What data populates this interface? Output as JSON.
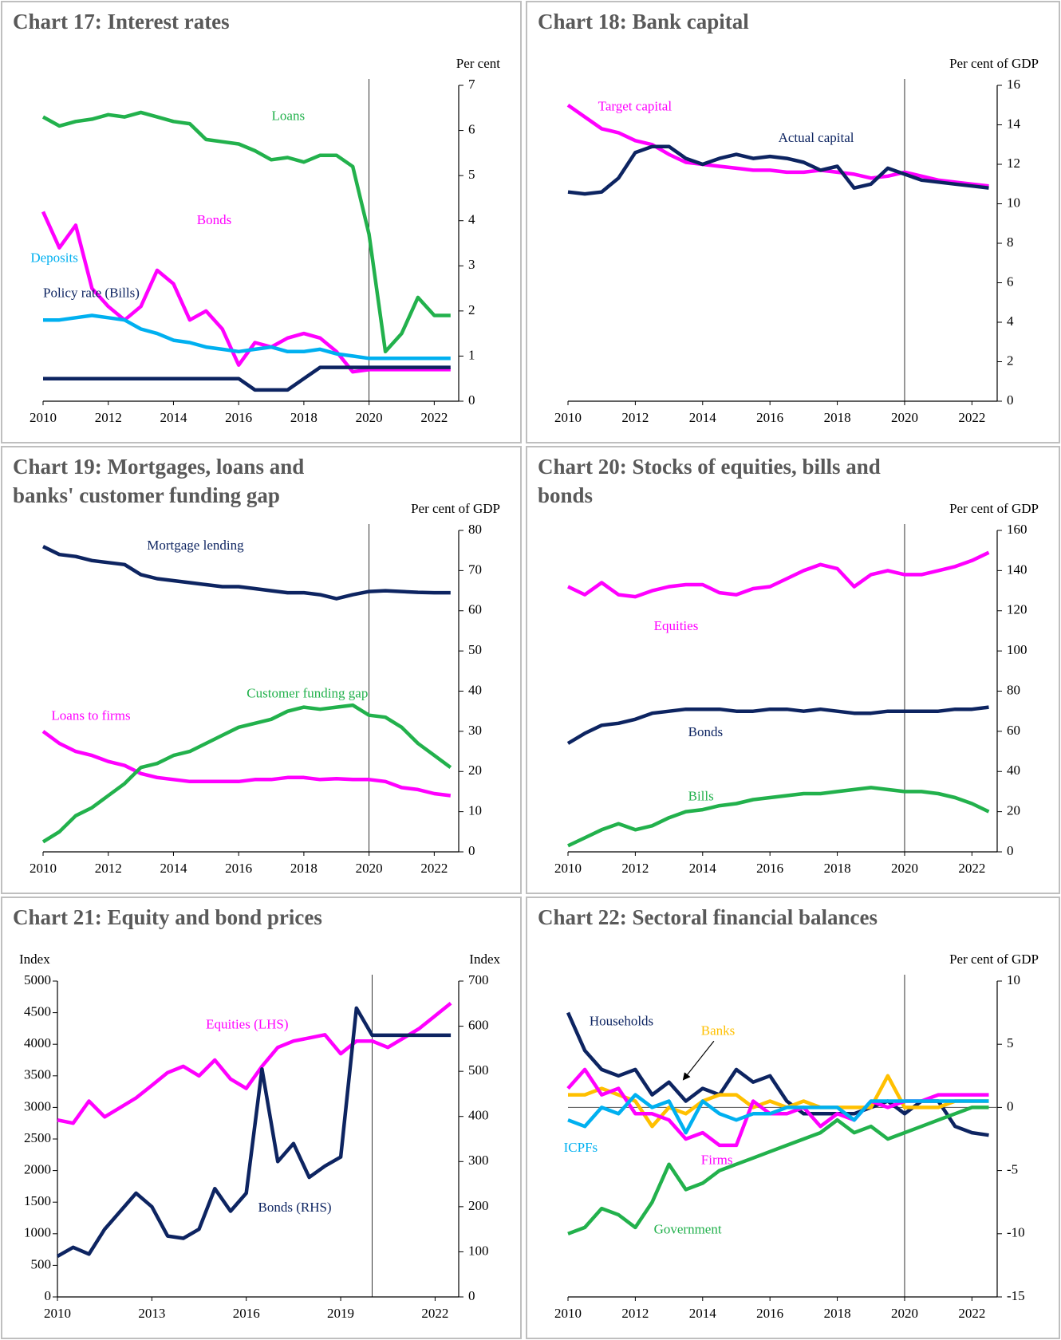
{
  "chart_data": [
    {
      "type": "line",
      "title": [
        "Chart 17:  Interest rates"
      ],
      "y_unit": "Per cent",
      "y_axis_side": "right",
      "vline": 2020,
      "x": [
        2010,
        2010.5,
        2011,
        2011.5,
        2012,
        2012.5,
        2013,
        2013.5,
        2014,
        2014.5,
        2015,
        2015.5,
        2016,
        2016.5,
        2017,
        2017.5,
        2018,
        2018.5,
        2019,
        2019.5,
        2020,
        2020.5,
        2021,
        2021.5,
        2022,
        2022.5
      ],
      "xlim": [
        2010,
        2022.75
      ],
      "xticks": [
        2010,
        2012,
        2014,
        2016,
        2018,
        2020,
        2022
      ],
      "ylim": [
        0,
        7
      ],
      "yticks": [
        0,
        1,
        2,
        3,
        4,
        5,
        6,
        7
      ],
      "series": [
        {
          "name": "Loans",
          "color": "#22b14c",
          "values": [
            6.3,
            6.1,
            6.2,
            6.25,
            6.35,
            6.3,
            6.4,
            6.3,
            6.2,
            6.15,
            5.8,
            5.75,
            5.7,
            5.55,
            5.35,
            5.4,
            5.3,
            5.45,
            5.45,
            5.2,
            3.7,
            1.1,
            1.5,
            2.3,
            1.9,
            1.9
          ]
        },
        {
          "name": "Bonds",
          "color": "#ff00ff",
          "values": [
            4.2,
            3.4,
            3.9,
            2.5,
            2.1,
            1.8,
            2.1,
            2.9,
            2.6,
            1.8,
            2.0,
            1.6,
            0.8,
            1.3,
            1.2,
            1.4,
            1.5,
            1.4,
            1.1,
            0.65,
            0.7,
            0.7,
            0.7,
            0.7,
            0.7,
            0.7
          ]
        },
        {
          "name": "Deposits",
          "color": "#00b0f0",
          "values": [
            1.8,
            1.8,
            1.85,
            1.9,
            1.85,
            1.8,
            1.6,
            1.5,
            1.35,
            1.3,
            1.2,
            1.15,
            1.1,
            1.15,
            1.2,
            1.1,
            1.1,
            1.15,
            1.05,
            1.0,
            0.95,
            0.95,
            0.95,
            0.95,
            0.95,
            0.95
          ]
        },
        {
          "name": "Policy rate (Bills)",
          "color": "#0d2461",
          "values": [
            0.5,
            0.5,
            0.5,
            0.5,
            0.5,
            0.5,
            0.5,
            0.5,
            0.5,
            0.5,
            0.5,
            0.5,
            0.5,
            0.25,
            0.25,
            0.25,
            0.5,
            0.75,
            0.75,
            0.75,
            0.75,
            0.75,
            0.75,
            0.75,
            0.75,
            0.75
          ]
        }
      ]
    },
    {
      "type": "line",
      "title": [
        "Chart 18:  Bank capital"
      ],
      "y_unit": "Per cent of GDP",
      "y_axis_side": "right",
      "vline": 2020,
      "x": [
        2010,
        2010.5,
        2011,
        2011.5,
        2012,
        2012.5,
        2013,
        2013.5,
        2014,
        2014.5,
        2015,
        2015.5,
        2016,
        2016.5,
        2017,
        2017.5,
        2018,
        2018.5,
        2019,
        2019.5,
        2020,
        2020.5,
        2021,
        2021.5,
        2022,
        2022.5
      ],
      "xlim": [
        2010,
        2022.75
      ],
      "xticks": [
        2010,
        2012,
        2014,
        2016,
        2018,
        2020,
        2022
      ],
      "ylim": [
        0,
        16
      ],
      "yticks": [
        0,
        2,
        4,
        6,
        8,
        10,
        12,
        14,
        16
      ],
      "series": [
        {
          "name": "Target capital",
          "color": "#ff00ff",
          "values": [
            15,
            14.4,
            13.8,
            13.6,
            13.2,
            13.0,
            12.5,
            12.1,
            12.0,
            11.9,
            11.8,
            11.7,
            11.7,
            11.6,
            11.6,
            11.7,
            11.6,
            11.5,
            11.3,
            11.4,
            11.6,
            11.4,
            11.2,
            11.1,
            11.0,
            10.9
          ]
        },
        {
          "name": "Actual capital",
          "color": "#0d2461",
          "values": [
            10.6,
            10.5,
            10.6,
            11.3,
            12.6,
            12.9,
            12.9,
            12.3,
            12.0,
            12.3,
            12.5,
            12.3,
            12.4,
            12.3,
            12.1,
            11.7,
            11.9,
            10.8,
            11.0,
            11.8,
            11.5,
            11.2,
            11.1,
            11.0,
            10.9,
            10.8
          ]
        }
      ]
    },
    {
      "type": "line",
      "title": [
        "Chart 19:  Mortgages, loans and",
        "banks' customer funding gap"
      ],
      "y_unit": "Per cent of GDP",
      "y_axis_side": "right",
      "vline": 2020,
      "x": [
        2010,
        2010.5,
        2011,
        2011.5,
        2012,
        2012.5,
        2013,
        2013.5,
        2014,
        2014.5,
        2015,
        2015.5,
        2016,
        2016.5,
        2017,
        2017.5,
        2018,
        2018.5,
        2019,
        2019.5,
        2020,
        2020.5,
        2021,
        2021.5,
        2022,
        2022.5
      ],
      "xlim": [
        2010,
        2022.75
      ],
      "xticks": [
        2010,
        2012,
        2014,
        2016,
        2018,
        2020,
        2022
      ],
      "ylim": [
        0,
        80
      ],
      "yticks": [
        0,
        10,
        20,
        30,
        40,
        50,
        60,
        70,
        80
      ],
      "series": [
        {
          "name": "Mortgage lending",
          "color": "#0d2461",
          "values": [
            76,
            74,
            73.5,
            72.5,
            72,
            71.5,
            69,
            68,
            67.5,
            67,
            66.5,
            66,
            66,
            65.5,
            65,
            64.5,
            64.5,
            64,
            63,
            64,
            64.8,
            65,
            64.8,
            64.6,
            64.5,
            64.5
          ]
        },
        {
          "name": "Loans to firms",
          "color": "#ff00ff",
          "values": [
            30,
            27,
            25,
            24,
            22.5,
            21.5,
            19.5,
            18.5,
            18,
            17.5,
            17.5,
            17.5,
            17.5,
            18,
            18,
            18.5,
            18.5,
            18,
            18.2,
            18,
            18,
            17.5,
            16,
            15.5,
            14.5,
            14
          ]
        },
        {
          "name": "Customer funding gap",
          "color": "#22b14c",
          "values": [
            2.5,
            5,
            9,
            11,
            14,
            17,
            21,
            22,
            24,
            25,
            27,
            29,
            31,
            32,
            33,
            35,
            36,
            35.5,
            36,
            36.5,
            34,
            33.5,
            31,
            27,
            24,
            21
          ]
        }
      ]
    },
    {
      "type": "line",
      "title": [
        "Chart 20:  Stocks of equities, bills and",
        "bonds"
      ],
      "y_unit": "Per cent of GDP",
      "y_axis_side": "right",
      "vline": 2020,
      "x": [
        2010,
        2010.5,
        2011,
        2011.5,
        2012,
        2012.5,
        2013,
        2013.5,
        2014,
        2014.5,
        2015,
        2015.5,
        2016,
        2016.5,
        2017,
        2017.5,
        2018,
        2018.5,
        2019,
        2019.5,
        2020,
        2020.5,
        2021,
        2021.5,
        2022,
        2022.5
      ],
      "xlim": [
        2010,
        2022.75
      ],
      "xticks": [
        2010,
        2012,
        2014,
        2016,
        2018,
        2020,
        2022
      ],
      "ylim": [
        0,
        160
      ],
      "yticks": [
        0,
        20,
        40,
        60,
        80,
        100,
        120,
        140,
        160
      ],
      "series": [
        {
          "name": "Equities",
          "color": "#ff00ff",
          "values": [
            132,
            128,
            134,
            128,
            127,
            130,
            132,
            133,
            133,
            129,
            128,
            131,
            132,
            136,
            140,
            143,
            141,
            132,
            138,
            140,
            138,
            138,
            140,
            142,
            145,
            149
          ]
        },
        {
          "name": "Bonds",
          "color": "#0d2461",
          "values": [
            54,
            59,
            63,
            64,
            66,
            69,
            70,
            71,
            71,
            71,
            70,
            70,
            71,
            71,
            70,
            71,
            70,
            69,
            69,
            70,
            70,
            70,
            70,
            71,
            71,
            72
          ]
        },
        {
          "name": "Bills",
          "color": "#22b14c",
          "values": [
            3,
            7,
            11,
            14,
            11,
            13,
            17,
            20,
            21,
            23,
            24,
            26,
            27,
            28,
            29,
            29,
            30,
            31,
            32,
            31,
            30,
            30,
            29,
            27,
            24,
            20
          ]
        }
      ]
    },
    {
      "type": "line",
      "title": [
        "Chart 21:  Equity and bond prices"
      ],
      "y_unit": "Index",
      "y2_unit": "Index",
      "y_axis_side": "left",
      "vline": 2020,
      "x": [
        2010,
        2010.5,
        2011,
        2011.5,
        2012,
        2012.5,
        2013,
        2013.5,
        2014,
        2014.5,
        2015,
        2015.5,
        2016,
        2016.5,
        2017,
        2017.5,
        2018,
        2018.5,
        2019,
        2019.5,
        2020,
        2020.5,
        2021,
        2021.5,
        2022,
        2022.5
      ],
      "xlim": [
        2010,
        2022.75
      ],
      "xticks": [
        2010,
        2013,
        2016,
        2019,
        2022
      ],
      "ylim": [
        0,
        5000
      ],
      "yticks": [
        0,
        500,
        1000,
        1500,
        2000,
        2500,
        3000,
        3500,
        4000,
        4500,
        5000
      ],
      "y2lim": [
        0,
        700
      ],
      "y2ticks": [
        0,
        100,
        200,
        300,
        400,
        500,
        600,
        700
      ],
      "series": [
        {
          "name": "Equities (LHS)",
          "color": "#ff00ff",
          "values": [
            2800,
            2750,
            3100,
            2850,
            3000,
            3150,
            3350,
            3550,
            3650,
            3500,
            3750,
            3450,
            3300,
            3650,
            3950,
            4050,
            4100,
            4150,
            3850,
            4050,
            4050,
            3950,
            4100,
            4250,
            4450,
            4650
          ]
        },
        {
          "name": "Bonds (RHS)",
          "color": "#0d2461",
          "axis": "y2",
          "values": [
            90,
            110,
            95,
            150,
            190,
            230,
            200,
            135,
            130,
            150,
            240,
            190,
            230,
            505,
            300,
            340,
            265,
            290,
            310,
            640,
            580,
            580,
            580,
            580,
            580,
            580
          ]
        }
      ]
    },
    {
      "type": "line",
      "title": [
        "Chart 22:  Sectoral financial balances"
      ],
      "y_unit": "Per cent of GDP",
      "y_axis_side": "right",
      "vline": 2020,
      "x": [
        2010,
        2010.5,
        2011,
        2011.5,
        2012,
        2012.5,
        2013,
        2013.5,
        2014,
        2014.5,
        2015,
        2015.5,
        2016,
        2016.5,
        2017,
        2017.5,
        2018,
        2018.5,
        2019,
        2019.5,
        2020,
        2020.5,
        2021,
        2021.5,
        2022,
        2022.5
      ],
      "xlim": [
        2010,
        2022.75
      ],
      "xticks": [
        2010,
        2012,
        2014,
        2016,
        2018,
        2020,
        2022
      ],
      "ylim": [
        -15,
        10
      ],
      "yticks": [
        -15,
        -10,
        -5,
        0,
        5,
        10
      ],
      "zero_line": true,
      "series": [
        {
          "name": "Households",
          "color": "#0d2461",
          "values": [
            7.5,
            4.5,
            3,
            2.5,
            3,
            1,
            2,
            0.5,
            1.5,
            1,
            3,
            2,
            2.5,
            0.5,
            -0.5,
            -0.5,
            -0.5,
            -0.5,
            0,
            0.5,
            -0.5,
            0.5,
            0.5,
            -1.5,
            -2,
            -2.2
          ]
        },
        {
          "name": "Banks",
          "color": "#ffc000",
          "values": [
            1,
            1,
            1.5,
            1,
            0.5,
            -1.5,
            0,
            -0.5,
            0.5,
            1,
            1,
            0,
            0.5,
            0,
            0.5,
            0,
            0,
            0,
            0,
            2.5,
            0,
            0,
            0,
            0.5,
            0.5,
            0.5
          ]
        },
        {
          "name": "Firms",
          "color": "#ff00ff",
          "values": [
            1.5,
            3,
            1,
            1.5,
            -0.5,
            -0.5,
            -1,
            -2.5,
            -2,
            -3,
            -3,
            0.5,
            -0.5,
            -0.5,
            0,
            -1.5,
            -0.5,
            -1,
            0.5,
            0,
            0.5,
            0.5,
            1,
            1,
            1,
            1
          ]
        },
        {
          "name": "ICPFs",
          "color": "#00b0f0",
          "values": [
            -1,
            -1.5,
            0,
            -0.5,
            1,
            0,
            0.5,
            -2,
            0.5,
            -0.5,
            -1,
            -0.5,
            -0.5,
            0,
            0,
            0,
            0,
            -1,
            0.5,
            0.5,
            0.5,
            0.5,
            0.5,
            0.5,
            0.5,
            0.5
          ]
        },
        {
          "name": "Government",
          "color": "#22b14c",
          "values": [
            -10,
            -9.5,
            -8,
            -8.5,
            -9.5,
            -7.5,
            -4.5,
            -6.5,
            -6,
            -5,
            -4.5,
            -4,
            -3.5,
            -3,
            -2.5,
            -2,
            -1,
            -2,
            -1.5,
            -2.5,
            -2,
            -1.5,
            -1,
            -0.5,
            0,
            0
          ]
        }
      ]
    }
  ]
}
